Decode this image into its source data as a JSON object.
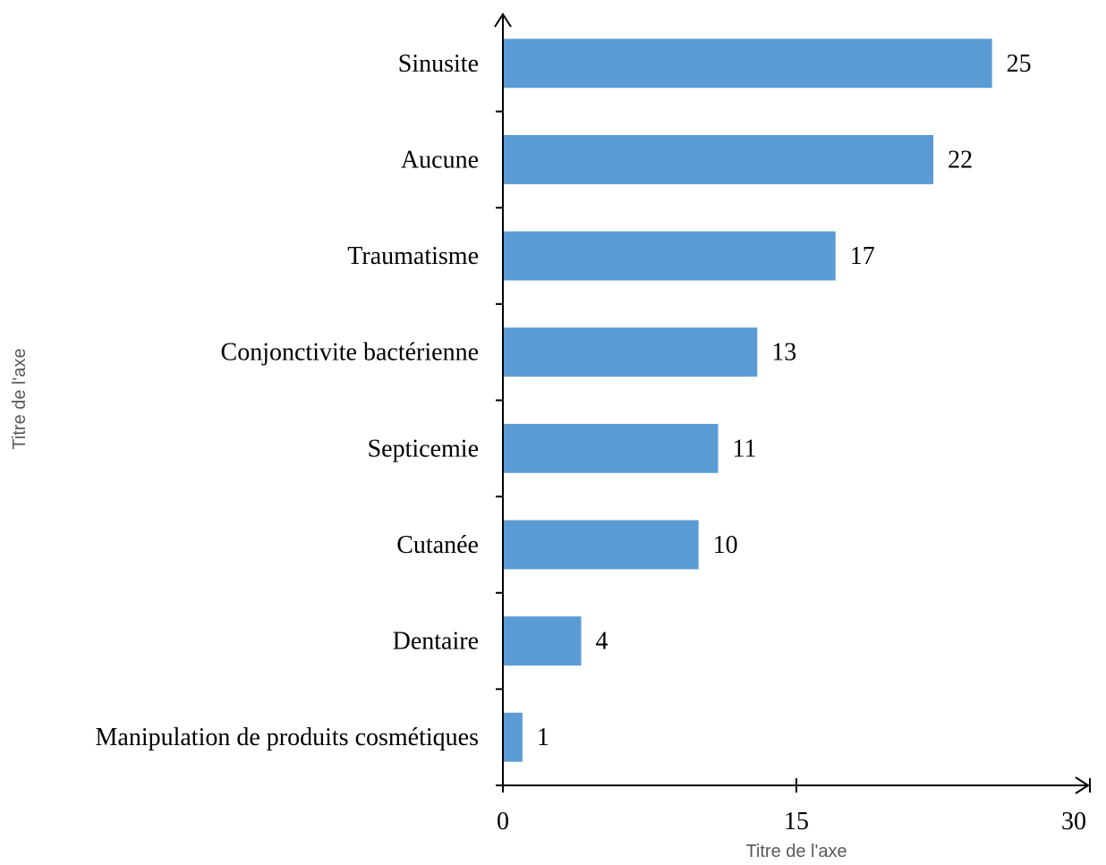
{
  "chart_data": {
    "type": "bar",
    "orientation": "horizontal",
    "categories": [
      "Sinusite",
      "Aucune",
      "Traumatisme",
      "Conjonctivite bactérienne",
      "Septicemie",
      "Cutanée",
      "Dentaire",
      "Manipulation de produits cosmétiques"
    ],
    "values": [
      25,
      22,
      17,
      13,
      11,
      10,
      4,
      1
    ],
    "xlabel": "Titre de l'axe",
    "ylabel": "Titre de l'axe",
    "xlim": [
      0,
      30
    ],
    "xticks": [
      "0",
      "15",
      "30"
    ],
    "bar_color": "#5B9BD5",
    "grid": false,
    "legend": "none"
  }
}
